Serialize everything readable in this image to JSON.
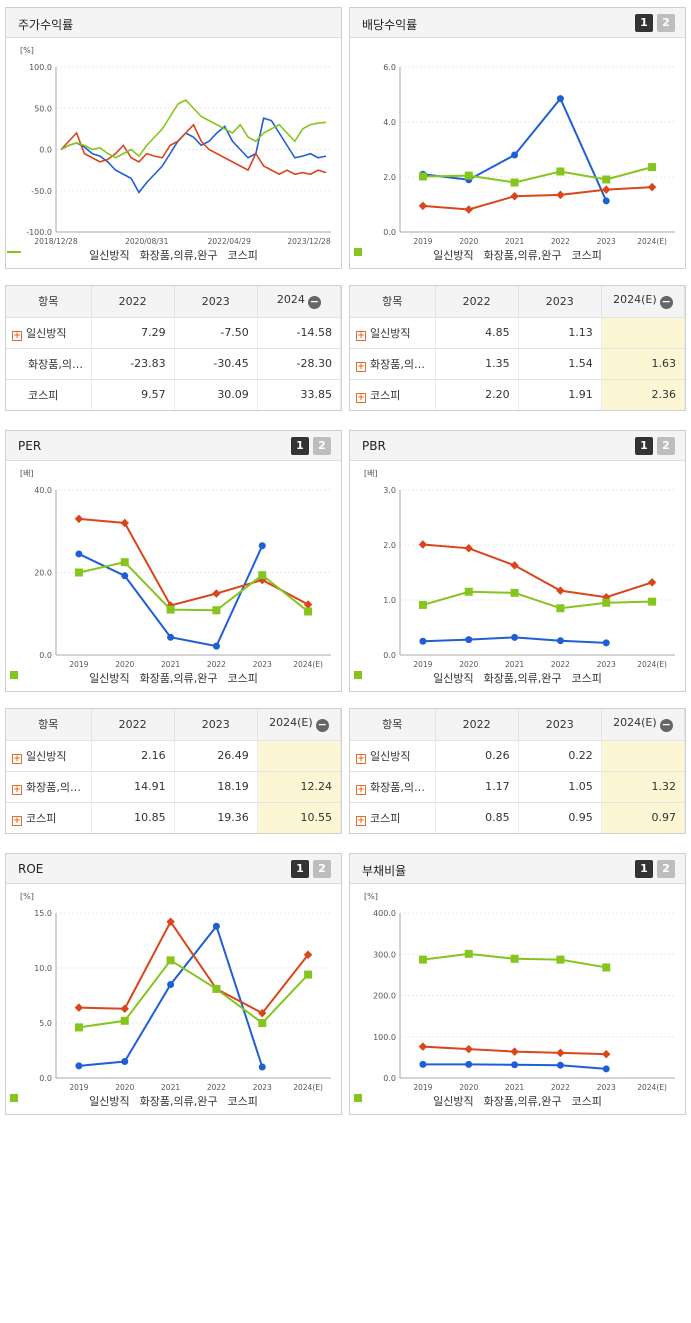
{
  "colors": {
    "s1": "#1f5fd6",
    "s2": "#d9461b",
    "s3": "#86c51e",
    "est_bg": "#fdf6d4"
  },
  "panels": {
    "stock_return": {
      "title": "주가수익률",
      "unit": "[%]",
      "legend": [
        "일신방직",
        "화장품,의류,완구",
        "코스피"
      ]
    },
    "dividend": {
      "title": "배당수익률",
      "unit": "%",
      "btn1": "1",
      "btn2": "2",
      "legend": [
        "일신방직",
        "화장품,의류,완구",
        "코스피"
      ]
    },
    "per": {
      "title": "PER",
      "unit": "[배]",
      "btn1": "1",
      "btn2": "2",
      "legend": [
        "일신방직",
        "화장품,의류,완구",
        "코스피"
      ]
    },
    "pbr": {
      "title": "PBR",
      "unit": "[배]",
      "btn1": "1",
      "btn2": "2",
      "legend": [
        "일신방직",
        "화장품,의류,완구",
        "코스피"
      ]
    },
    "roe": {
      "title": "ROE",
      "unit": "[%]",
      "btn1": "1",
      "btn2": "2",
      "legend": [
        "일신방직",
        "화장품,의류,완구",
        "코스피"
      ]
    },
    "debt": {
      "title": "부채비율",
      "unit": "[%]",
      "btn1": "1",
      "btn2": "2",
      "legend": [
        "일신방직",
        "화장품,의류,완구",
        "코스피"
      ]
    }
  },
  "tables": {
    "stock_return": {
      "headers": [
        "항목",
        "2022",
        "2023",
        "2024"
      ],
      "rows": [
        {
          "name": "일신방직",
          "plus": true,
          "values": [
            "7.29",
            "-7.50",
            "-14.58"
          ]
        },
        {
          "name": "화장품,의…",
          "plus": false,
          "values": [
            "-23.83",
            "-30.45",
            "-28.30"
          ]
        },
        {
          "name": "코스피",
          "plus": false,
          "values": [
            "9.57",
            "30.09",
            "33.85"
          ]
        }
      ]
    },
    "dividend": {
      "headers": [
        "항목",
        "2022",
        "2023",
        "2024(E)"
      ],
      "rows": [
        {
          "name": "일신방직",
          "plus": true,
          "values": [
            "4.85",
            "1.13",
            ""
          ]
        },
        {
          "name": "화장품,의…",
          "plus": true,
          "values": [
            "1.35",
            "1.54",
            "1.63"
          ]
        },
        {
          "name": "코스피",
          "plus": true,
          "values": [
            "2.20",
            "1.91",
            "2.36"
          ]
        }
      ]
    },
    "per": {
      "headers": [
        "항목",
        "2022",
        "2023",
        "2024(E)"
      ],
      "rows": [
        {
          "name": "일신방직",
          "plus": true,
          "values": [
            "2.16",
            "26.49",
            ""
          ]
        },
        {
          "name": "화장품,의…",
          "plus": true,
          "values": [
            "14.91",
            "18.19",
            "12.24"
          ]
        },
        {
          "name": "코스피",
          "plus": true,
          "values": [
            "10.85",
            "19.36",
            "10.55"
          ]
        }
      ]
    },
    "pbr": {
      "headers": [
        "항목",
        "2022",
        "2023",
        "2024(E)"
      ],
      "rows": [
        {
          "name": "일신방직",
          "plus": true,
          "values": [
            "0.26",
            "0.22",
            ""
          ]
        },
        {
          "name": "화장품,의…",
          "plus": true,
          "values": [
            "1.17",
            "1.05",
            "1.32"
          ]
        },
        {
          "name": "코스피",
          "plus": true,
          "values": [
            "0.85",
            "0.95",
            "0.97"
          ]
        }
      ]
    }
  },
  "chart_data": [
    {
      "id": "stock_return",
      "type": "line",
      "title": "주가수익률",
      "ylabel": "[%]",
      "ylim": [
        -100,
        100
      ],
      "yticks": [
        "100.0",
        "50.0",
        "0.0",
        "-50.0",
        "-100.0"
      ],
      "xticks": [
        "2018/12/28",
        "2020/08/31",
        "2022/04/29",
        "2023/12/28"
      ],
      "series": [
        {
          "name": "일신방직",
          "values": [
            0,
            5,
            8,
            3,
            -5,
            -8,
            -15,
            -25,
            -30,
            -35,
            -52,
            -40,
            -30,
            -20,
            -5,
            10,
            20,
            15,
            5,
            10,
            20,
            28,
            10,
            0,
            -10,
            -5,
            38,
            35,
            20,
            5,
            -10,
            -8,
            -5,
            -10,
            -8
          ]
        },
        {
          "name": "화장품,의류,완구",
          "values": [
            0,
            10,
            20,
            -5,
            -10,
            -15,
            -12,
            -5,
            5,
            -10,
            -15,
            -5,
            -8,
            -10,
            5,
            10,
            20,
            30,
            10,
            0,
            -5,
            -10,
            -15,
            -20,
            -25,
            -5,
            -20,
            -25,
            -30,
            -25,
            -30,
            -28,
            -30,
            -25,
            -28
          ]
        },
        {
          "name": "코스피",
          "values": [
            0,
            5,
            8,
            5,
            0,
            2,
            -5,
            -10,
            -5,
            0,
            -8,
            5,
            15,
            25,
            40,
            55,
            60,
            50,
            40,
            35,
            30,
            25,
            20,
            30,
            15,
            10,
            20,
            25,
            30,
            20,
            10,
            25,
            30,
            32,
            33
          ]
        }
      ]
    },
    {
      "id": "dividend",
      "type": "line",
      "title": "배당수익률",
      "ylim": [
        0,
        6
      ],
      "yticks": [
        "6.0",
        "4.0",
        "2.0",
        "0.0"
      ],
      "categories": [
        "2019",
        "2020",
        "2021",
        "2022",
        "2023",
        "2024(E)"
      ],
      "series": [
        {
          "name": "일신방직",
          "values": [
            2.1,
            1.9,
            2.8,
            4.85,
            1.13,
            null
          ]
        },
        {
          "name": "화장품,의류,완구",
          "values": [
            0.95,
            0.82,
            1.3,
            1.35,
            1.54,
            1.63
          ]
        },
        {
          "name": "코스피",
          "values": [
            2.02,
            2.05,
            1.8,
            2.2,
            1.91,
            2.36
          ]
        }
      ]
    },
    {
      "id": "per",
      "type": "line",
      "title": "PER",
      "ylim": [
        0,
        40
      ],
      "yticks": [
        "40.0",
        "20.0",
        "0.0"
      ],
      "categories": [
        "2019",
        "2020",
        "2021",
        "2022",
        "2023",
        "2024(E)"
      ],
      "series": [
        {
          "name": "일신방직",
          "values": [
            24.5,
            19.2,
            4.3,
            2.16,
            26.49,
            null
          ]
        },
        {
          "name": "화장품,의류,완구",
          "values": [
            33.0,
            32.0,
            12.0,
            14.91,
            18.19,
            12.24
          ]
        },
        {
          "name": "코스피",
          "values": [
            20.0,
            22.5,
            11.0,
            10.85,
            19.36,
            10.55
          ]
        }
      ]
    },
    {
      "id": "pbr",
      "type": "line",
      "title": "PBR",
      "ylim": [
        0,
        3
      ],
      "yticks": [
        "3.0",
        "2.0",
        "1.0",
        "0.0"
      ],
      "categories": [
        "2019",
        "2020",
        "2021",
        "2022",
        "2023",
        "2024(E)"
      ],
      "series": [
        {
          "name": "일신방직",
          "values": [
            0.25,
            0.28,
            0.32,
            0.26,
            0.22,
            null
          ]
        },
        {
          "name": "화장품,의류,완구",
          "values": [
            2.01,
            1.94,
            1.63,
            1.17,
            1.05,
            1.32
          ]
        },
        {
          "name": "코스피",
          "values": [
            0.91,
            1.15,
            1.13,
            0.85,
            0.95,
            0.97
          ]
        }
      ]
    },
    {
      "id": "roe",
      "type": "line",
      "title": "ROE",
      "ylim": [
        0,
        15
      ],
      "yticks": [
        "15.0",
        "10.0",
        "5.0",
        "0.0"
      ],
      "categories": [
        "2019",
        "2020",
        "2021",
        "2022",
        "2023",
        "2024(E)"
      ],
      "series": [
        {
          "name": "일신방직",
          "values": [
            1.1,
            1.5,
            8.5,
            13.8,
            1.0,
            null
          ]
        },
        {
          "name": "화장품,의류,완구",
          "values": [
            6.4,
            6.3,
            14.2,
            8.1,
            5.9,
            11.2
          ]
        },
        {
          "name": "코스피",
          "values": [
            4.6,
            5.2,
            10.7,
            8.1,
            5.0,
            9.4
          ]
        }
      ]
    },
    {
      "id": "debt",
      "type": "line",
      "title": "부채비율",
      "ylim": [
        0,
        400
      ],
      "yticks": [
        "400.0",
        "300.0",
        "200.0",
        "100.0",
        "0.0"
      ],
      "categories": [
        "2019",
        "2020",
        "2021",
        "2022",
        "2023",
        "2024(E)"
      ],
      "series": [
        {
          "name": "일신방직",
          "values": [
            33,
            33,
            32,
            31,
            22,
            null
          ]
        },
        {
          "name": "화장품,의류,완구",
          "values": [
            76,
            70,
            64,
            61,
            58,
            null
          ]
        },
        {
          "name": "코스피",
          "values": [
            287,
            301,
            289,
            287,
            268,
            null
          ]
        }
      ]
    }
  ]
}
